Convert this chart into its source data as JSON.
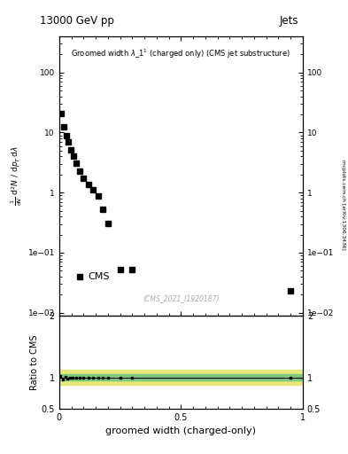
{
  "title_top": "13000 GeV pp",
  "title_right": "Jets",
  "plot_title": "Groomed width $\\lambda$_1$^1$ (charged only) (CMS jet substructure)",
  "cms_label": "CMS",
  "cms_ref": "(CMS_2021_I1920187)",
  "arxiv_label": "mcplots.cern.ch [arXiv:1306.3436]",
  "xlabel": "groomed width (charged-only)",
  "ylabel": "mathrm d$^2$N / mathrm d p$_T$ mathrm d lambda",
  "ylabel_ratio": "Ratio to CMS",
  "data_x": [
    0.008,
    0.018,
    0.028,
    0.038,
    0.048,
    0.058,
    0.07,
    0.085,
    0.1,
    0.12,
    0.14,
    0.16,
    0.18,
    0.2,
    0.25,
    0.3,
    0.95
  ],
  "data_y": [
    21.0,
    12.5,
    9.0,
    7.0,
    5.2,
    4.0,
    3.1,
    2.3,
    1.75,
    1.35,
    1.1,
    0.88,
    0.52,
    0.31,
    0.053,
    0.053,
    0.023
  ],
  "band_inner_color": "#7ec87e",
  "band_outer_color": "#e8e87a",
  "band_inner_half": 0.05,
  "band_outer_half": 0.12,
  "marker_color": "black",
  "marker_size": 4.5,
  "ylim_main": [
    0.009,
    400
  ],
  "ylim_ratio": [
    0.5,
    2.0
  ],
  "xlim": [
    0.0,
    1.0
  ],
  "background_color": "#ffffff",
  "ratio_x_pts": [
    0.005,
    0.015,
    0.025,
    0.035,
    0.045,
    0.055,
    0.07,
    0.085,
    0.1,
    0.12,
    0.14,
    0.16,
    0.18,
    0.2,
    0.25,
    0.3,
    0.95
  ],
  "ratio_y_pts": [
    1.03,
    0.97,
    1.01,
    0.99,
    1.0,
    1.0,
    1.0,
    1.0,
    1.0,
    1.0,
    1.0,
    1.0,
    1.0,
    1.0,
    1.0,
    1.0,
    1.0
  ]
}
